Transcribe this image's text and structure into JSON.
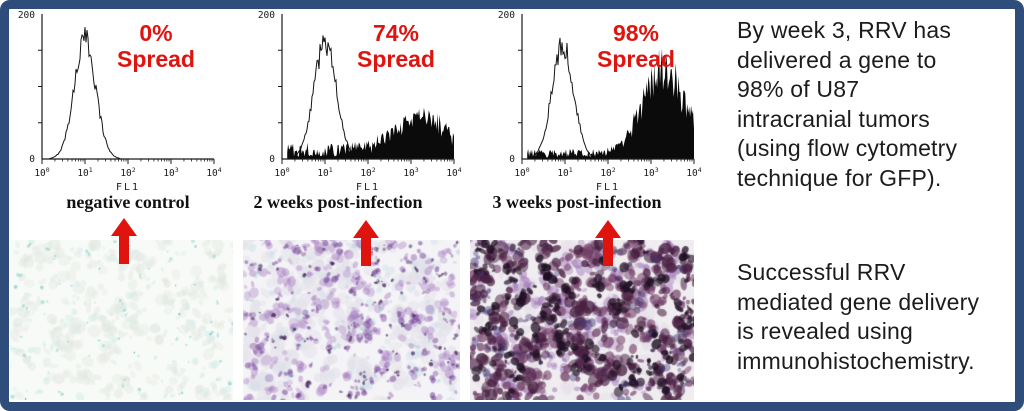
{
  "colors": {
    "border": "#2e4d7b",
    "annotation_red": "#e0140f",
    "axis": "#1a1a1a",
    "histogram_fill": "#0b0b0b"
  },
  "chart_data": [
    {
      "type": "histogram",
      "id": "negative-control",
      "caption": "negative control",
      "annotation": {
        "pct": "0%",
        "word": "Spread"
      },
      "x_axis": {
        "label": "FL1",
        "scale": "log10",
        "min_exponent": 0,
        "max_exponent": 4,
        "tick_labels": [
          "10^0",
          "10^1",
          "10^2",
          "10^3",
          "10^4"
        ]
      },
      "y_axis": {
        "min": 0,
        "max": 200,
        "min_label": "0",
        "max_label": "200"
      },
      "series": [
        {
          "name": "gfp-negative-population",
          "style": "open-outline",
          "center_decade": 1.0,
          "sigma_decades": 0.25,
          "peak_count": 165
        }
      ]
    },
    {
      "type": "histogram",
      "id": "2-weeks-post-infection",
      "caption": "2 weeks post-infection",
      "annotation": {
        "pct": "74%",
        "word": "Spread"
      },
      "x_axis": {
        "label": "FL1",
        "scale": "log10",
        "min_exponent": 0,
        "max_exponent": 4,
        "tick_labels": [
          "10^0",
          "10^1",
          "10^2",
          "10^3",
          "10^4"
        ]
      },
      "y_axis": {
        "min": 0,
        "max": 200,
        "min_label": "0",
        "max_label": "200"
      },
      "series": [
        {
          "name": "gfp-negative-population",
          "style": "open-outline",
          "center_decade": 1.0,
          "sigma_decades": 0.26,
          "peak_count": 160
        },
        {
          "name": "gfp-positive-population",
          "style": "filled",
          "center_decade": 3.2,
          "sigma_decades": 0.55,
          "peak_count": 45,
          "baseline_count": 13
        }
      ]
    },
    {
      "type": "histogram",
      "id": "3-weeks-post-infection",
      "caption": "3 weeks post-infection",
      "annotation": {
        "pct": "98%",
        "word": "Spread"
      },
      "x_axis": {
        "label": "FL1",
        "scale": "log10",
        "min_exponent": 0,
        "max_exponent": 4,
        "tick_labels": [
          "10^0",
          "10^1",
          "10^2",
          "10^3",
          "10^4"
        ]
      },
      "y_axis": {
        "min": 0,
        "max": 200,
        "min_label": "0",
        "max_label": "200"
      },
      "series": [
        {
          "name": "gfp-negative-population",
          "style": "open-outline",
          "center_decade": 0.95,
          "sigma_decades": 0.25,
          "peak_count": 158
        },
        {
          "name": "gfp-positive-population",
          "style": "filled",
          "center_decade": 3.3,
          "sigma_decades": 0.48,
          "peak_count": 118,
          "baseline_count": 8
        }
      ]
    }
  ],
  "micrographs": [
    {
      "id": "ihc-negative-control",
      "seed": 11,
      "bg": "#f8faf7",
      "layers": [
        {
          "color": "#e2e8e1",
          "alpha": 0.55,
          "count": 170,
          "rmin": 2,
          "rmax": 6,
          "cluster": 3
        },
        {
          "color": "#d4ece9",
          "alpha": 0.6,
          "count": 80,
          "rmin": 1.5,
          "rmax": 4,
          "cluster": 2
        },
        {
          "color": "#8fd4cd",
          "alpha": 0.75,
          "count": 55,
          "rmin": 0.7,
          "rmax": 2,
          "cluster": 2
        },
        {
          "color": "#3aaaa2",
          "alpha": 0.9,
          "count": 14,
          "rmin": 0.5,
          "rmax": 1.1,
          "cluster": 1
        }
      ]
    },
    {
      "id": "ihc-2-weeks",
      "seed": 22,
      "bg": "#f4f3f6",
      "layers": [
        {
          "color": "#e4e2ea",
          "alpha": 0.7,
          "count": 150,
          "rmin": 3,
          "rmax": 8,
          "cluster": 3
        },
        {
          "color": "#cfe0ea",
          "alpha": 0.5,
          "count": 60,
          "rmin": 2,
          "rmax": 5,
          "cluster": 2
        },
        {
          "color": "#a87fc2",
          "alpha": 0.5,
          "count": 120,
          "rmin": 2,
          "rmax": 5,
          "cluster": 4
        },
        {
          "color": "#7a4a9b",
          "alpha": 0.6,
          "count": 90,
          "rmin": 1.2,
          "rmax": 3.5,
          "cluster": 4
        },
        {
          "color": "#43265c",
          "alpha": 0.75,
          "count": 70,
          "rmin": 0.8,
          "rmax": 2.2,
          "cluster": 3
        },
        {
          "color": "#97ccd3",
          "alpha": 0.5,
          "count": 35,
          "rmin": 1,
          "rmax": 2.5,
          "cluster": 2
        }
      ]
    },
    {
      "id": "ihc-3-weeks",
      "seed": 33,
      "bg": "#f0edf1",
      "layers": [
        {
          "color": "#e6dfe8",
          "alpha": 0.7,
          "count": 90,
          "rmin": 3,
          "rmax": 8,
          "cluster": 3
        },
        {
          "color": "#a178b8",
          "alpha": 0.55,
          "count": 110,
          "rmin": 2,
          "rmax": 6,
          "cluster": 4
        },
        {
          "color": "#723f66",
          "alpha": 0.75,
          "count": 120,
          "rmin": 2,
          "rmax": 6,
          "cluster": 4
        },
        {
          "color": "#4a2143",
          "alpha": 0.8,
          "count": 110,
          "rmin": 2,
          "rmax": 7,
          "cluster": 5
        },
        {
          "color": "#201024",
          "alpha": 0.85,
          "count": 95,
          "rmin": 1.5,
          "rmax": 5,
          "cluster": 5
        },
        {
          "color": "#3e3470",
          "alpha": 0.5,
          "count": 40,
          "rmin": 1.5,
          "rmax": 4,
          "cluster": 3
        }
      ]
    }
  ],
  "text_blocks": {
    "flow_summary": "By week 3, RRV has\ndelivered a gene to\n98% of U87\nintracranial tumors\n(using flow cytometry\ntechnique for GFP).",
    "ihc_summary": "Successful RRV\nmediated gene delivery\nis revealed using\nimmunohistochemistry."
  }
}
